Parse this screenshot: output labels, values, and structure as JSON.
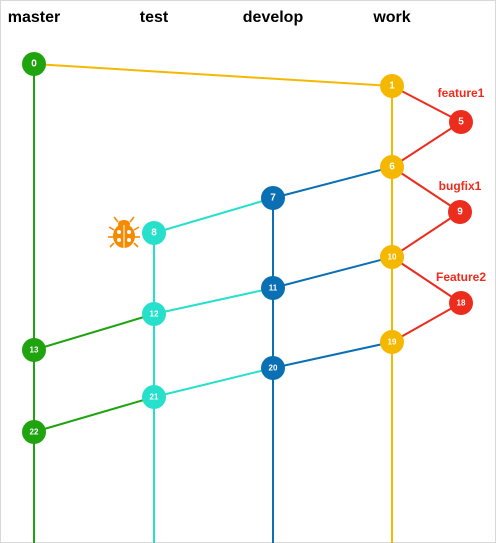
{
  "lanes": [
    {
      "id": "master",
      "title": "master",
      "color": "#1fa30f"
    },
    {
      "id": "test",
      "title": "test",
      "color": "#27e0cc"
    },
    {
      "id": "develop",
      "title": "develop",
      "color": "#0a6fb3"
    },
    {
      "id": "work",
      "title": "work",
      "color": "#f5b800"
    }
  ],
  "feature_color": "#ec2c1c",
  "tags": [
    {
      "id": "feature1",
      "text": "feature1"
    },
    {
      "id": "bugfix1",
      "text": "bugfix1"
    },
    {
      "id": "feature2",
      "text": "Feature2"
    }
  ],
  "commits": [
    {
      "id": "0",
      "label": "0",
      "lane": "master"
    },
    {
      "id": "1",
      "label": "1",
      "lane": "work"
    },
    {
      "id": "5",
      "label": "5",
      "lane": "feature"
    },
    {
      "id": "6",
      "label": "6",
      "lane": "work"
    },
    {
      "id": "7",
      "label": "7",
      "lane": "develop"
    },
    {
      "id": "8",
      "label": "8",
      "lane": "test"
    },
    {
      "id": "9",
      "label": "9",
      "lane": "feature"
    },
    {
      "id": "10",
      "label": "10",
      "lane": "work"
    },
    {
      "id": "11",
      "label": "11",
      "lane": "develop"
    },
    {
      "id": "12",
      "label": "12",
      "lane": "test"
    },
    {
      "id": "13",
      "label": "13",
      "lane": "master"
    },
    {
      "id": "18",
      "label": "18",
      "lane": "feature"
    },
    {
      "id": "19",
      "label": "19",
      "lane": "work"
    },
    {
      "id": "20",
      "label": "20",
      "lane": "develop"
    },
    {
      "id": "21",
      "label": "21",
      "lane": "test"
    },
    {
      "id": "22",
      "label": "22",
      "lane": "master"
    }
  ],
  "links": [
    {
      "from": "0",
      "to": "1",
      "lane": "work"
    },
    {
      "from": "1",
      "to": "5",
      "lane": "feature"
    },
    {
      "from": "5",
      "to": "6",
      "lane": "feature"
    },
    {
      "from": "6",
      "to": "7",
      "lane": "develop"
    },
    {
      "from": "6",
      "to": "9",
      "lane": "feature"
    },
    {
      "from": "9",
      "to": "10",
      "lane": "feature"
    },
    {
      "from": "7",
      "to": "8",
      "lane": "test"
    },
    {
      "from": "10",
      "to": "11",
      "lane": "develop"
    },
    {
      "from": "10",
      "to": "18",
      "lane": "feature"
    },
    {
      "from": "18",
      "to": "19",
      "lane": "feature"
    },
    {
      "from": "11",
      "to": "12",
      "lane": "test"
    },
    {
      "from": "12",
      "to": "13",
      "lane": "master"
    },
    {
      "from": "19",
      "to": "20",
      "lane": "develop"
    },
    {
      "from": "20",
      "to": "21",
      "lane": "test"
    },
    {
      "from": "21",
      "to": "22",
      "lane": "master"
    }
  ],
  "bug_marker": {
    "icon": "ladybug-icon",
    "color": "#f58a00",
    "commit": "8"
  }
}
